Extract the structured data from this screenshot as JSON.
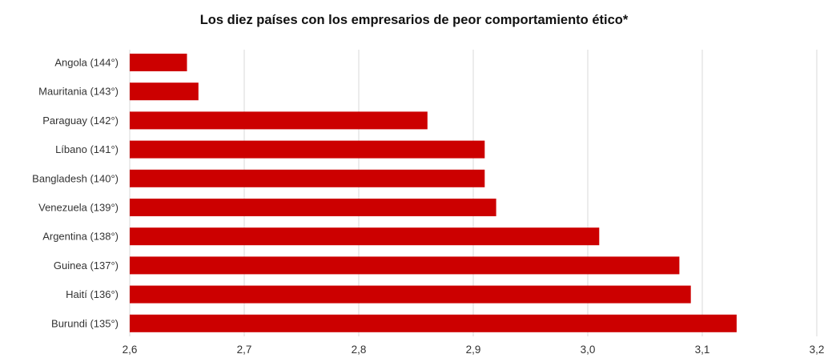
{
  "chart_data": {
    "type": "bar",
    "orientation": "horizontal",
    "title": "Los diez países con los empresarios de peor comportamiento ético*",
    "xlabel": "",
    "ylabel": "",
    "categories": [
      "Angola (144°)",
      "Mauritania (143°)",
      "Paraguay (142°)",
      "Líbano (141°)",
      "Bangladesh (140°)",
      "Venezuela (139°)",
      "Argentina (138°)",
      "Guinea (137°)",
      "Haití (136°)",
      "Burundi (135°)"
    ],
    "values": [
      2.65,
      2.66,
      2.86,
      2.91,
      2.91,
      2.92,
      3.01,
      3.08,
      3.09,
      3.13
    ],
    "xlim": [
      2.6,
      3.2
    ],
    "xticks": [
      2.6,
      2.7,
      2.8,
      2.9,
      3.0,
      3.1,
      3.2
    ],
    "xtick_labels": [
      "2,6",
      "2,7",
      "2,8",
      "2,9",
      "3,0",
      "3,1",
      "3,2"
    ],
    "grid": true,
    "legend": "none",
    "bar_color": "#cc0000",
    "grid_color": "#d9d9d9"
  }
}
